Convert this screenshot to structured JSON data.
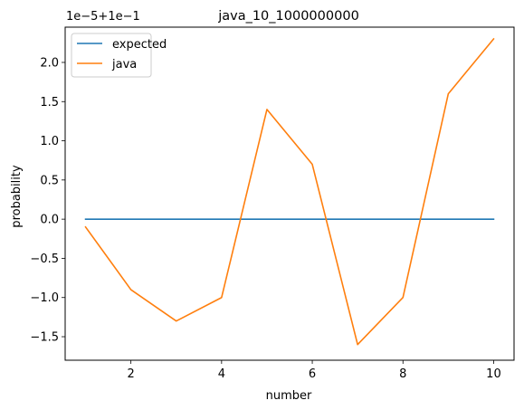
{
  "chart_data": {
    "type": "line",
    "title": "java_10_1000000000",
    "xlabel": "number",
    "ylabel": "probability",
    "offset_text": "1e−5+1e−1",
    "x": [
      1,
      2,
      3,
      4,
      5,
      6,
      7,
      8,
      9,
      10
    ],
    "xlim": [
      0.55,
      10.45
    ],
    "ylim": [
      -1.8,
      2.45
    ],
    "xticks": [
      2,
      4,
      6,
      8,
      10
    ],
    "xtick_labels": [
      "2",
      "4",
      "6",
      "8",
      "10"
    ],
    "yticks": [
      -1.5,
      -1.0,
      -0.5,
      0.0,
      0.5,
      1.0,
      1.5,
      2.0
    ],
    "ytick_labels": [
      "−1.5",
      "−1.0",
      "−0.5",
      "0.0",
      "0.5",
      "1.0",
      "1.5",
      "2.0"
    ],
    "grid": false,
    "legend_position": "top-left",
    "series": [
      {
        "name": "expected",
        "color": "#1f77b4",
        "values": [
          0,
          0,
          0,
          0,
          0,
          0,
          0,
          0,
          0,
          0
        ]
      },
      {
        "name": "java",
        "color": "#ff7f0e",
        "values": [
          -0.1,
          -0.9,
          -1.3,
          -1.0,
          1.4,
          0.7,
          -1.6,
          -1.0,
          1.6,
          2.3
        ]
      }
    ]
  }
}
